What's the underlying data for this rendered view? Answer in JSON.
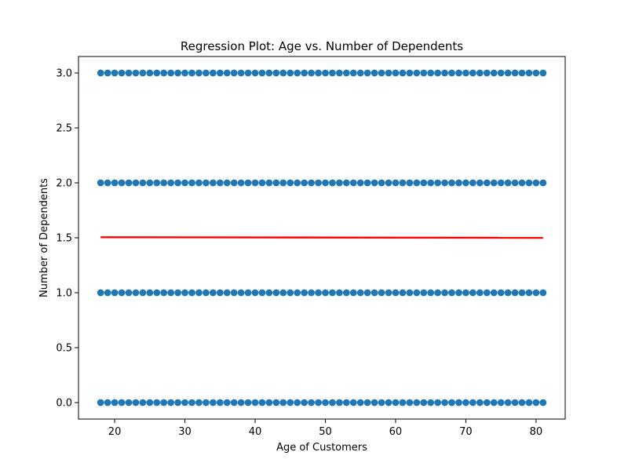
{
  "chart_data": {
    "type": "scatter",
    "title": "Regression Plot: Age vs. Number of Dependents",
    "xlabel": "Age of Customers",
    "ylabel": "Number of Dependents",
    "xlim": [
      14.85,
      84.15
    ],
    "ylim": [
      -0.15,
      3.15
    ],
    "xticks": [
      20,
      30,
      40,
      50,
      60,
      70,
      80
    ],
    "xtick_labels": [
      "20",
      "30",
      "40",
      "50",
      "60",
      "70",
      "80"
    ],
    "yticks": [
      0.0,
      0.5,
      1.0,
      1.5,
      2.0,
      2.5,
      3.0
    ],
    "ytick_labels": [
      "0.0",
      "0.5",
      "1.0",
      "1.5",
      "2.0",
      "2.5",
      "3.0"
    ],
    "grid": false,
    "scatter": {
      "color": "#1f77b4",
      "x_min": 18,
      "x_max": 81,
      "x_step": 1,
      "y_levels": [
        0,
        1,
        2,
        3
      ]
    },
    "regression_line": {
      "color": "#ff0000",
      "x": [
        18,
        81
      ],
      "y": [
        1.505,
        1.5
      ]
    }
  }
}
